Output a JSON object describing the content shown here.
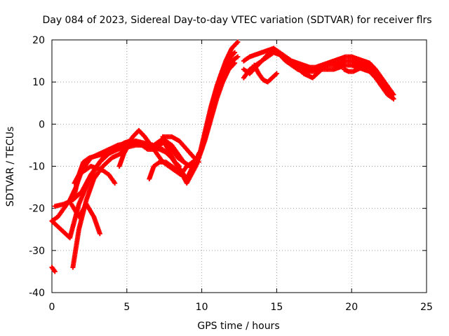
{
  "chart_data": {
    "type": "scatter",
    "title": "Day 084 of 2023, Sidereal Day-to-day VTEC variation (SDTVAR) for receiver flrs",
    "xlabel": "GPS time / hours",
    "ylabel": "SDTVAR / TECUs",
    "xlim": [
      0,
      25
    ],
    "ylim": [
      -40,
      20
    ],
    "xticks": [
      0,
      5,
      10,
      15,
      20,
      25
    ],
    "yticks": [
      -40,
      -30,
      -20,
      -10,
      0,
      10,
      20
    ],
    "xtick_labels": [
      "0",
      "5",
      "10",
      "15",
      "20",
      "25"
    ],
    "ytick_labels": [
      "-40",
      "-30",
      "-20",
      "-10",
      "0",
      "10",
      "20"
    ],
    "grid": true,
    "marker": "+",
    "color": "#ff0000",
    "series": [
      {
        "name": "s1",
        "x": [
          0.0,
          0.4,
          0.8,
          1.2,
          1.6,
          2.0,
          2.6,
          3.2,
          3.8,
          4.4,
          5.0,
          5.6,
          6.2,
          6.8,
          7.2,
          7.6,
          8.0,
          8.4,
          8.8,
          9.2,
          9.6,
          10.0,
          10.4,
          10.8,
          11.2,
          11.6,
          12.0,
          12.4
        ],
        "y": [
          -23,
          -22,
          -20,
          -18,
          -15,
          -11,
          -8,
          -7,
          -6,
          -5,
          -4.5,
          -4,
          -4.5,
          -5,
          -4,
          -4,
          -5,
          -7,
          -9,
          -10,
          -9,
          -6,
          0,
          6,
          11,
          15,
          18,
          19.5
        ]
      },
      {
        "name": "s2",
        "x": [
          0.0,
          0.6,
          1.2,
          1.8,
          2.4,
          3.0,
          3.6,
          4.2,
          4.8,
          5.4,
          6.0,
          6.6,
          7.2,
          7.8,
          8.4,
          9.0,
          9.6,
          10.0,
          10.4,
          10.8,
          11.2,
          11.6,
          12.0,
          12.4
        ],
        "y": [
          -23,
          -25,
          -27,
          -19,
          -14,
          -10,
          -7,
          -5.5,
          -5,
          -4.5,
          -5,
          -5.5,
          -6,
          -7,
          -10,
          -14,
          -10,
          -6,
          0,
          5,
          10,
          13,
          15,
          16
        ]
      },
      {
        "name": "s3",
        "x": [
          0.2,
          0.8,
          1.4,
          2.0,
          2.6,
          3.2,
          3.8,
          4.4,
          5.0,
          5.6,
          6.2,
          6.8,
          7.4,
          8.0,
          8.6,
          9.0,
          9.4,
          9.8,
          10.2,
          10.6,
          11.0,
          11.4,
          11.8,
          12.2
        ],
        "y": [
          -19.5,
          -19,
          -18,
          -16,
          -12,
          -9,
          -7,
          -6,
          -5.5,
          -5,
          -5,
          -5.5,
          -6,
          -8,
          -11,
          -13,
          -10,
          -8,
          -2,
          4,
          9,
          13,
          15.5,
          17
        ]
      },
      {
        "name": "s4",
        "x": [
          1.5,
          1.8,
          2.1,
          2.5,
          3.0,
          3.5,
          4.0,
          4.4,
          4.8,
          5.2,
          5.8,
          6.4,
          7.0,
          7.5,
          8.0,
          8.5,
          9.0,
          9.5,
          9.8
        ],
        "y": [
          -17,
          -12,
          -9,
          -8,
          -7.5,
          -7,
          -6.5,
          -5.5,
          -4.5,
          -4,
          -4.5,
          -5.5,
          -5,
          -3,
          -3,
          -4,
          -6,
          -8,
          -9
        ]
      },
      {
        "name": "s5",
        "x": [
          1.5,
          1.8,
          2.2,
          2.6,
          3.0,
          3.4,
          3.8,
          4.2
        ],
        "y": [
          -14,
          -12,
          -11,
          -10,
          -10.5,
          -11,
          -12,
          -14
        ]
      },
      {
        "name": "s6",
        "x": [
          1.3,
          1.8,
          2.3,
          2.8,
          3.2
        ],
        "y": [
          -19,
          -22,
          -19,
          -22,
          -26
        ]
      },
      {
        "name": "s7",
        "x": [
          1.4,
          1.8,
          2.3,
          2.8,
          3.4,
          4.0,
          4.6,
          5.0,
          5.4,
          5.8,
          6.2,
          6.6,
          7.0,
          7.4,
          7.8,
          8.2,
          8.6,
          9.0,
          9.4,
          9.8,
          10.2,
          10.6,
          11.0,
          11.4,
          11.8,
          12.2
        ],
        "y": [
          -34,
          -25,
          -18,
          -13,
          -10,
          -8,
          -7,
          -5,
          -3,
          -1.5,
          -3,
          -5,
          -7,
          -9,
          -10,
          -11,
          -12,
          -10,
          -9,
          -8,
          -4,
          1,
          6,
          10,
          13,
          14.5
        ]
      },
      {
        "name": "s8",
        "x": [
          0.0,
          0.2
        ],
        "y": [
          -34,
          -35
        ]
      },
      {
        "name": "s9",
        "x": [
          4.5,
          4.8,
          5.2,
          5.6,
          6.0,
          6.4,
          6.8,
          7.2,
          7.6,
          8.0,
          8.4,
          8.8,
          9.2,
          9.6,
          9.8,
          10.0
        ],
        "y": [
          -10,
          -7,
          -4.5,
          -4,
          -5,
          -6,
          -6,
          -5,
          -4,
          -6,
          -8,
          -9,
          -10,
          -9,
          -7,
          -6
        ]
      },
      {
        "name": "s10",
        "x": [
          6.5,
          6.8,
          7.2,
          7.6,
          8.0,
          8.4
        ],
        "y": [
          -13,
          -10,
          -9,
          -9,
          -10,
          -11
        ]
      },
      {
        "name": "s11",
        "x": [
          7.4,
          7.6,
          7.9,
          8.2,
          8.5
        ],
        "y": [
          -3,
          -5,
          -7,
          -9,
          -10
        ]
      },
      {
        "name": "s12",
        "x": [
          12.8,
          13.2,
          13.6,
          14.0,
          14.4,
          14.8,
          15.2,
          15.6,
          16.0,
          16.4,
          16.8,
          17.2,
          17.6,
          18.0,
          18.4,
          18.8,
          19.2,
          19.6,
          20.0,
          20.4,
          20.8,
          21.2,
          21.6,
          22.0,
          22.4,
          22.8
        ],
        "y": [
          15,
          16,
          16.5,
          17,
          17.5,
          18,
          17,
          16,
          15,
          14.5,
          14,
          13.5,
          13.5,
          14,
          14.5,
          15,
          15.5,
          16,
          16,
          15.5,
          15,
          14.5,
          13,
          11,
          9,
          7
        ]
      },
      {
        "name": "s13",
        "x": [
          12.8,
          13.2,
          13.6,
          14.0,
          14.4,
          14.8,
          15.2,
          15.6,
          16.0,
          16.4,
          16.8,
          17.2,
          17.6,
          18.0,
          18.4,
          18.8,
          19.2,
          19.6,
          20.0,
          20.4,
          20.8,
          21.2,
          21.6,
          22.0,
          22.4,
          22.8
        ],
        "y": [
          11,
          13,
          14,
          15,
          16,
          17,
          16.5,
          15,
          14,
          13,
          12.5,
          13,
          13,
          13.5,
          14,
          14,
          14.5,
          15,
          15,
          14.5,
          14,
          13.5,
          12,
          10,
          8,
          6
        ]
      },
      {
        "name": "s14",
        "x": [
          12.8,
          13.2,
          13.6,
          14.0,
          14.4,
          14.8,
          15.2,
          15.6,
          16.0,
          16.4,
          16.8,
          17.2,
          17.6,
          18.0,
          18.4,
          18.8,
          19.2,
          19.6,
          20.0,
          20.4,
          20.8,
          21.2,
          21.6,
          22.0,
          22.4,
          22.8
        ],
        "y": [
          13,
          12,
          13.5,
          15,
          16.5,
          17.5,
          17,
          15.5,
          14.5,
          13.5,
          13,
          12.5,
          12.5,
          13,
          13,
          13,
          13.5,
          14,
          14,
          13.5,
          13,
          12.5,
          11,
          9,
          7,
          6
        ]
      },
      {
        "name": "s15",
        "x": [
          13.5,
          13.8,
          14.1,
          14.4,
          14.7,
          15.0
        ],
        "y": [
          14,
          12,
          10.5,
          10,
          11,
          12
        ]
      },
      {
        "name": "s16",
        "x": [
          16.5,
          16.8,
          17.1,
          17.4,
          17.7,
          18.0
        ],
        "y": [
          13,
          12,
          11.5,
          11,
          12,
          13
        ]
      },
      {
        "name": "s17",
        "x": [
          19.5,
          19.8,
          20.1,
          20.4,
          20.7,
          21.0,
          21.3,
          21.6
        ],
        "y": [
          13,
          12.5,
          12.5,
          13,
          13.5,
          14,
          13,
          12
        ]
      }
    ]
  }
}
